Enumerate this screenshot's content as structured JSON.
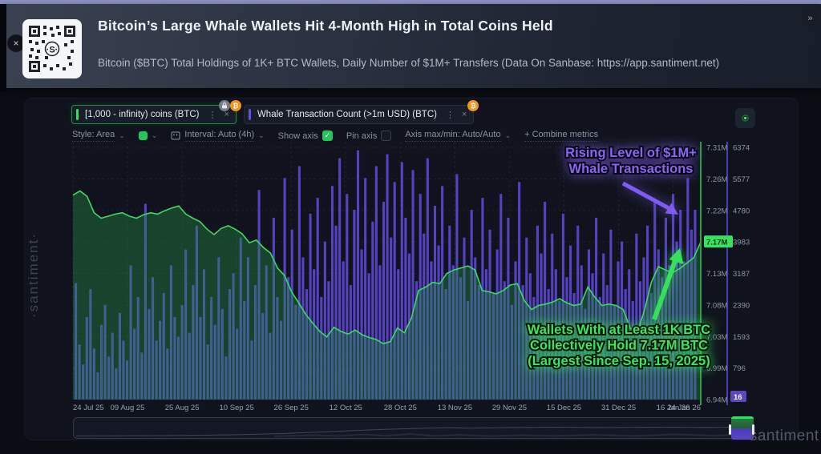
{
  "header": {
    "close_icon": "×",
    "expand_icon": "»",
    "title": "Bitcoin’s Large Whale Wallets Hit 4-Month High in Total Coins Held",
    "subtitle": "Bitcoin ($BTC) Total Holdings of 1K+ BTC Wallets, Daily Number of $1M+ Transfers (Data On Sanbase: https://app.santiment.net)"
  },
  "toolbar": {
    "chips": [
      {
        "label": "[1,000 - infinity) coins (BTC)",
        "menu_icon": "⋮",
        "close_icon": "×",
        "badge_btc": "₿",
        "badge_lock": "lock-icon",
        "accent": "#2ee05a"
      },
      {
        "label": "Whale Transaction Count (>1m USD) (BTC)",
        "menu_icon": "⋮",
        "close_icon": "×",
        "badge_btc": "₿",
        "accent": "#6c4ee0"
      }
    ]
  },
  "controls": {
    "style": "Style: Area",
    "chevron": "⌄",
    "swatch_color": "#22c55e",
    "interval": "Interval: Auto (4h)",
    "show_axis": "Show axis",
    "check": "✓",
    "pin_axis": "Pin axis",
    "axis_maxmin": "Axis max/min: Auto/Auto",
    "combine": "+ Combine metrics"
  },
  "watermarks": {
    "left": "·santiment·",
    "center": "santiment",
    "bottom_right": "·santiment·"
  },
  "chart_data": {
    "type": "mixed",
    "x_labels": [
      "24 Jul 25",
      "09 Aug 25",
      "25 Aug 25",
      "10 Sep 25",
      "26 Sep 25",
      "12 Oct 25",
      "28 Oct 25",
      "13 Nov 25",
      "29 Nov 25",
      "15 Dec 25",
      "31 Dec 25",
      "16 Jan 26",
      "24 Jan 26"
    ],
    "left_axis": {
      "ticks": [
        "7.31M",
        "7.26M",
        "7.22M",
        "7.17M",
        "7.13M",
        "7.08M",
        "7.03M",
        "6.99M",
        "6.94M"
      ],
      "highlight": "7.17M",
      "color": "#2ea043",
      "ylim": [
        6.94,
        7.31
      ],
      "unit": "M BTC"
    },
    "right_axis": {
      "ticks": [
        "6374",
        "5577",
        "4780",
        "3983",
        "3187",
        "2390",
        "1593",
        "796",
        "16"
      ],
      "highlight": "16",
      "color": "#4a3fae",
      "ylim": [
        16,
        6374
      ]
    },
    "series": [
      {
        "name": "[1,000 - infinity) coins (BTC)",
        "type": "area",
        "axis": "left",
        "color": "#3fd864",
        "fill": "rgba(38,140,70,0.40)",
        "values": [
          7.24,
          7.246,
          7.238,
          7.214,
          7.206,
          7.209,
          7.212,
          7.214,
          7.209,
          7.206,
          7.211,
          7.214,
          7.212,
          7.217,
          7.221,
          7.224,
          7.212,
          7.206,
          7.201,
          7.19,
          7.182,
          7.191,
          7.195,
          7.19,
          7.183,
          7.17,
          7.174,
          7.163,
          7.155,
          7.133,
          7.122,
          7.098,
          7.082,
          7.065,
          7.052,
          7.04,
          7.032,
          7.046,
          7.04,
          7.036,
          7.042,
          7.035,
          7.031,
          7.028,
          7.022,
          7.025,
          7.045,
          7.038,
          7.06,
          7.1,
          7.105,
          7.112,
          7.11,
          7.125,
          7.13,
          7.133,
          7.136,
          7.13,
          7.1,
          7.098,
          7.095,
          7.1,
          7.108,
          7.11,
          7.085,
          7.072,
          7.078,
          7.08,
          7.083,
          7.088,
          7.082,
          7.078,
          7.08,
          7.105,
          7.09,
          7.078,
          7.08,
          7.078,
          7.072,
          7.045,
          7.038,
          7.07,
          7.112,
          7.135,
          7.13,
          7.126,
          7.132,
          7.14,
          7.148,
          7.171
        ]
      },
      {
        "name": "Whale Transaction Count (>1m USD) (BTC)",
        "type": "bar",
        "axis": "right",
        "color": "#5a46cf",
        "values": [
          2950,
          1400,
          900,
          2100,
          2800,
          1300,
          700,
          1900,
          2400,
          1100,
          1700,
          800,
          2200,
          1500,
          1000,
          3400,
          1800,
          2600,
          1200,
          4950,
          2300,
          3100,
          1500,
          2000,
          2700,
          1300,
          3400,
          2100,
          1600,
          2400,
          3800,
          1700,
          2900,
          4400,
          2100,
          3300,
          1400,
          2600,
          1900,
          3600,
          2300,
          1100,
          2800,
          3200,
          1800,
          4100,
          2500,
          3600,
          1500,
          2900,
          5300,
          2200,
          3400,
          1700,
          4600,
          2600,
          2000,
          5600,
          3100,
          4300,
          2400,
          5900,
          3600,
          2800,
          4700,
          3300,
          5100,
          2600,
          4000,
          3000,
          5400,
          4400,
          6100,
          3500,
          5200,
          2900,
          4800,
          6300,
          3800,
          5600,
          3200,
          4500,
          5900,
          3400,
          5000,
          6200,
          4100,
          5500,
          3300,
          6000,
          4600,
          3700,
          5800,
          3000,
          5200,
          4200,
          6100,
          3500,
          4900,
          3900,
          5400,
          2800,
          4400,
          3400,
          5700,
          3100,
          4100,
          2500,
          4800,
          3600,
          2900,
          5100,
          3300,
          4300,
          2700,
          3800,
          5200,
          3000,
          4600,
          2400,
          3500,
          5500,
          2900,
          4100,
          3200,
          2600,
          4400,
          3700,
          5000,
          2800,
          4200,
          3300,
          2500,
          4700,
          3100,
          3900,
          2700,
          4400,
          3400,
          2300,
          3800,
          3200,
          4600,
          2600,
          3700,
          2900,
          4300,
          2400,
          3500,
          4000,
          2800,
          3300,
          2500,
          4200,
          3000,
          3600,
          4400,
          2700,
          5000,
          3800,
          3100,
          4600,
          3400,
          5200,
          4000,
          4800,
          3500,
          5600,
          4300,
          4800
        ]
      }
    ],
    "annotations": [
      {
        "id": "whale-transactions",
        "lines": [
          "Rising Level of $1M+",
          "Whale Transactions"
        ],
        "color": "#8468f2"
      },
      {
        "id": "holdings-high",
        "lines": [
          "Wallets With at Least 1K BTC",
          "Collectively Hold 7.17M BTC",
          "(Largest Since Sep. 15, 2025)"
        ],
        "color": "#3fe45f"
      }
    ]
  }
}
